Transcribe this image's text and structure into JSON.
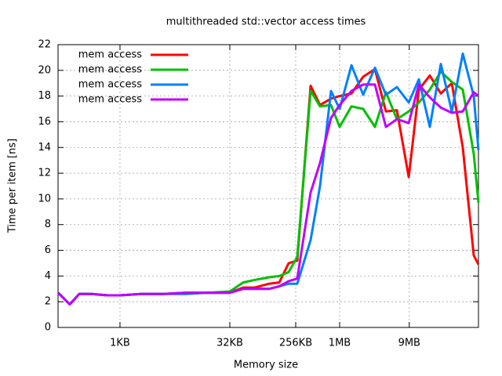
{
  "chart_data": {
    "type": "line",
    "title": "multithreaded std::vector access times",
    "x_label": "Memory size",
    "y_label": "Time per item [ns]",
    "x_log": true,
    "grid": true,
    "legend_position": "top-left",
    "x": [
      145,
      210,
      283,
      420,
      689,
      1024,
      1998,
      3995,
      7990,
      15980,
      32768,
      49900,
      72400,
      113000,
      155900,
      209700,
      275600,
      419500,
      564800,
      798000,
      1048576,
      1522000,
      2203000,
      3191000,
      4515000,
      6383000,
      9275000,
      12770000,
      18060000,
      25530000,
      36130000,
      51100000,
      72250000,
      83800000
    ],
    "series": [
      {
        "name": "mem access",
        "color": "#ff0000",
        "values": [
          2.7,
          1.8,
          2.6,
          2.6,
          2.5,
          2.5,
          2.6,
          2.6,
          2.7,
          2.7,
          2.7,
          3.1,
          3.1,
          3.4,
          3.5,
          5.0,
          5.2,
          18.8,
          17.3,
          17.8,
          18.0,
          18.2,
          19.5,
          20.1,
          16.8,
          16.9,
          11.7,
          18.5,
          19.6,
          18.2,
          19.0,
          14.0,
          5.6,
          4.9
        ]
      },
      {
        "name": "mem access",
        "color": "#00c000",
        "values": [
          2.7,
          1.8,
          2.6,
          2.6,
          2.5,
          2.5,
          2.6,
          2.6,
          2.7,
          2.7,
          2.8,
          3.5,
          3.7,
          3.9,
          4.0,
          4.3,
          5.5,
          18.4,
          17.2,
          17.3,
          15.6,
          17.2,
          17.0,
          15.6,
          18.3,
          16.2,
          16.8,
          17.5,
          18.5,
          19.9,
          19.1,
          18.5,
          13.5,
          9.7
        ]
      },
      {
        "name": "mem access",
        "color": "#0080ff",
        "values": [
          2.7,
          1.8,
          2.6,
          2.6,
          2.5,
          2.5,
          2.6,
          2.6,
          2.6,
          2.7,
          2.7,
          3.0,
          3.0,
          3.0,
          3.2,
          3.4,
          3.4,
          6.8,
          11.0,
          18.4,
          17.0,
          20.4,
          18.1,
          20.2,
          18.1,
          18.7,
          17.5,
          19.3,
          15.6,
          20.5,
          16.8,
          21.3,
          18.0,
          13.8
        ]
      },
      {
        "name": "mem access",
        "color": "#c000ff",
        "values": [
          2.7,
          1.8,
          2.6,
          2.6,
          2.5,
          2.5,
          2.6,
          2.6,
          2.7,
          2.7,
          2.7,
          3.0,
          3.0,
          3.0,
          3.2,
          3.6,
          3.8,
          10.5,
          12.8,
          16.3,
          17.3,
          18.4,
          18.9,
          18.9,
          15.6,
          16.2,
          15.9,
          18.9,
          17.9,
          17.1,
          16.7,
          16.8,
          18.3,
          18.0
        ]
      }
    ],
    "xlim": [
      145,
      83800000
    ],
    "xticks": [
      {
        "value": 1024,
        "label": "1KB"
      },
      {
        "value": 32768,
        "label": "32KB"
      },
      {
        "value": 262144,
        "label": "256KB"
      },
      {
        "value": 1048576,
        "label": "1MB"
      },
      {
        "value": 9437184,
        "label": "9MB"
      }
    ],
    "ylim": [
      0,
      22
    ],
    "yticks": [
      0,
      2,
      4,
      6,
      8,
      10,
      12,
      14,
      16,
      18,
      20,
      22
    ]
  }
}
